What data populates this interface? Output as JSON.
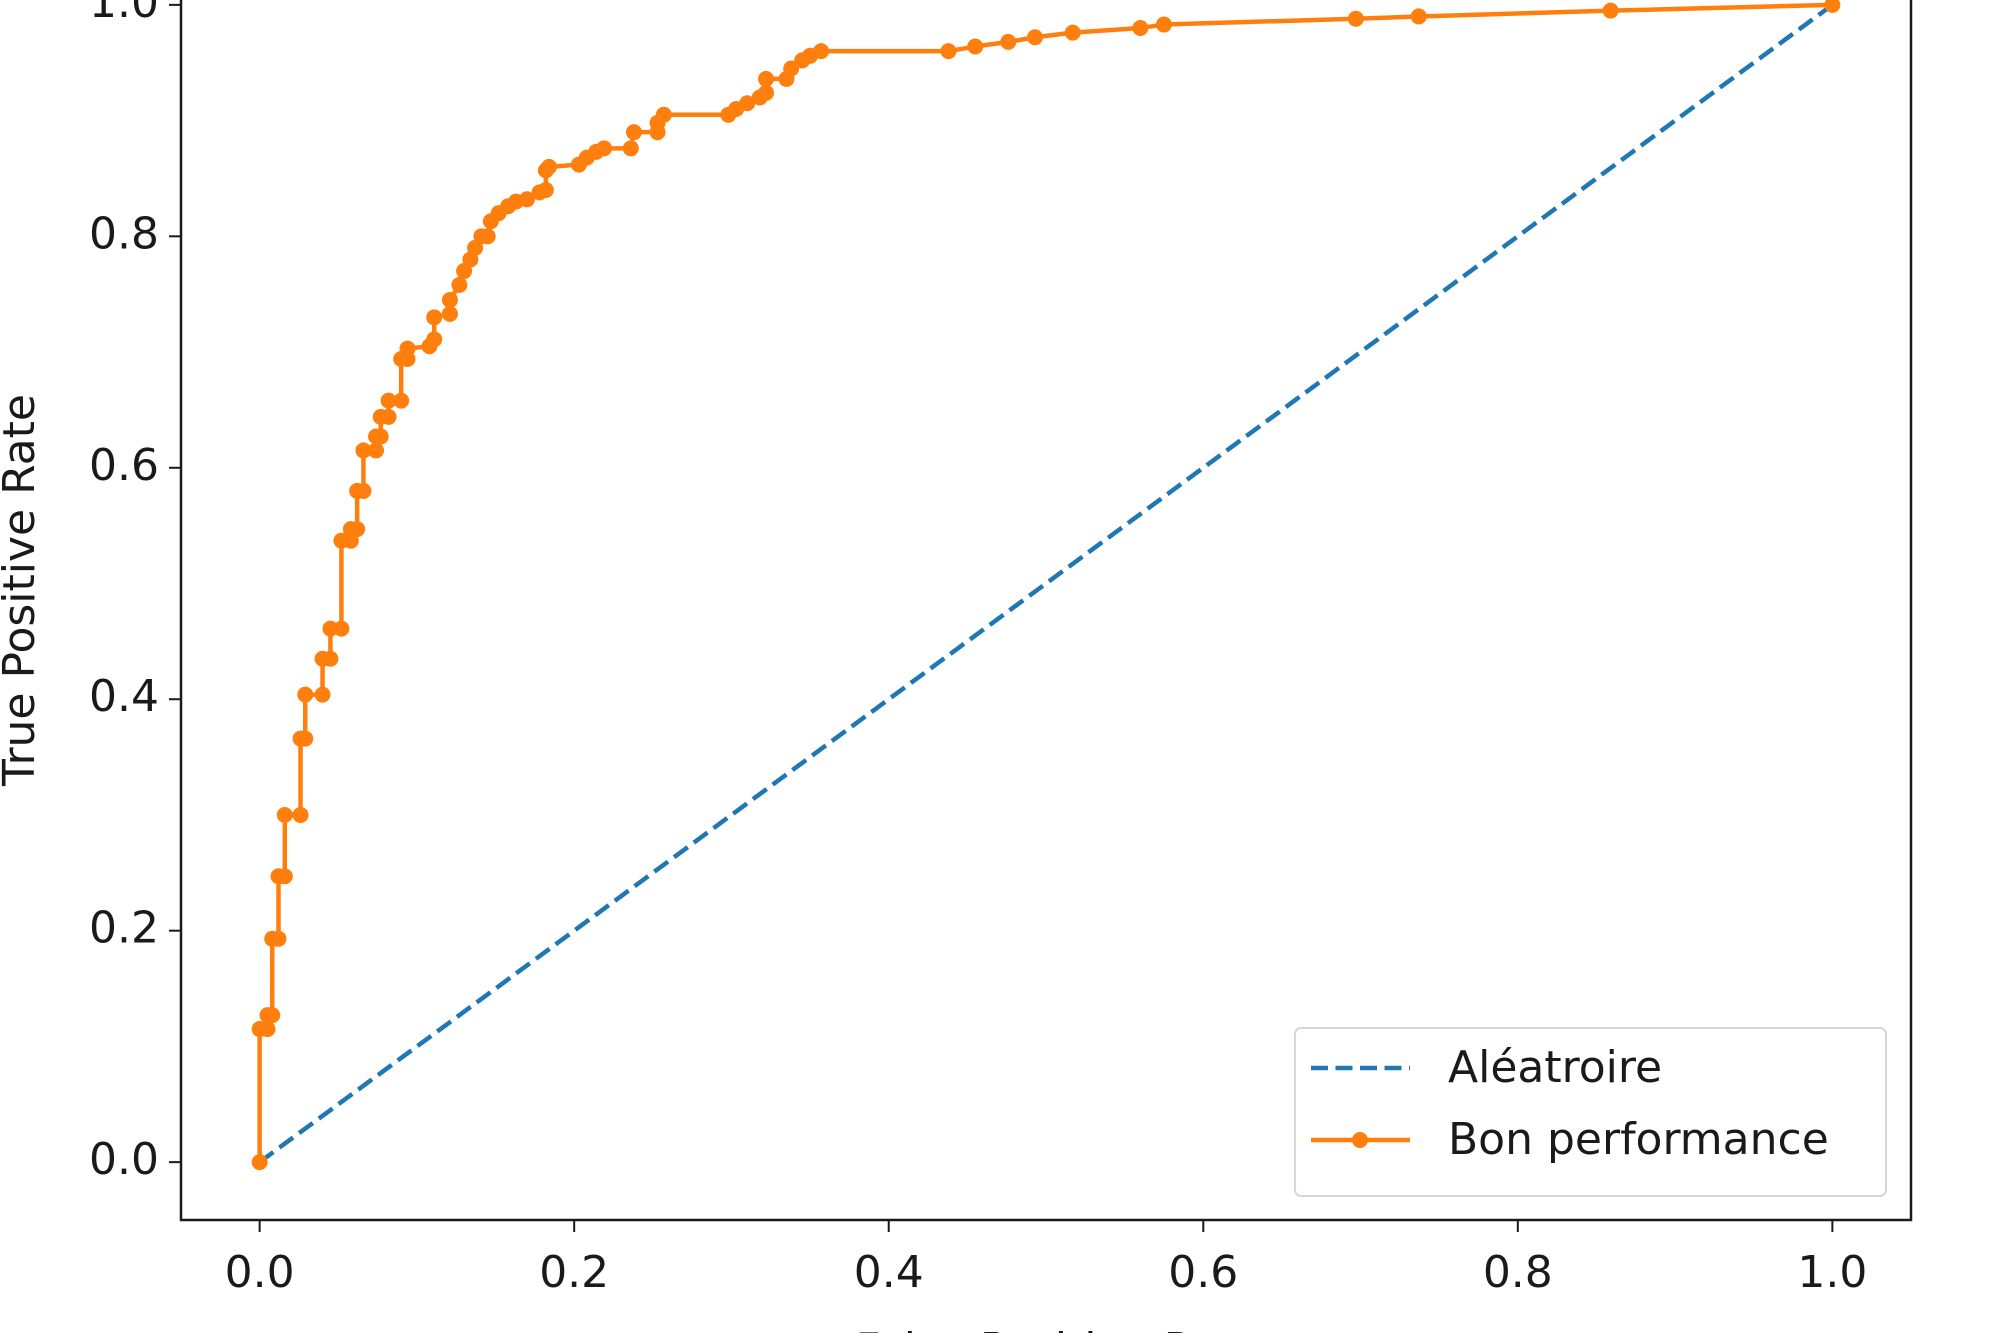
{
  "chart_data": {
    "type": "line",
    "x_label": "False Positive Rate",
    "y_label": "True Positive Rate",
    "xlim": [
      -0.05,
      1.05
    ],
    "ylim": [
      -0.05,
      1.05
    ],
    "xticks": [
      {
        "value": 0,
        "label": "0.0"
      },
      0.2,
      0.4,
      0.6,
      0.8,
      {
        "value": 1,
        "label": "1.0"
      }
    ],
    "yticks": [
      {
        "value": 0,
        "label": "0.0"
      },
      0.2,
      0.4,
      0.6,
      0.8,
      {
        "value": 1,
        "label": "1.0"
      }
    ],
    "grid": false,
    "legend": "lower right",
    "series": [
      {
        "name": "Aléatroire",
        "color": "#1f77b4",
        "dashed": true,
        "markers": false,
        "x": [
          0,
          1
        ],
        "values": [
          0,
          1
        ]
      },
      {
        "name": "Bon performance",
        "color": "#ff7f0e",
        "dashed": false,
        "markers": true,
        "x": [
          0.0,
          0.0,
          0.005,
          0.005,
          0.008,
          0.008,
          0.012,
          0.012,
          0.016,
          0.016,
          0.026,
          0.026,
          0.029,
          0.029,
          0.04,
          0.04,
          0.045,
          0.045,
          0.052,
          0.052,
          0.058,
          0.058,
          0.062,
          0.062,
          0.066,
          0.066,
          0.074,
          0.074,
          0.077,
          0.077,
          0.082,
          0.082,
          0.09,
          0.09,
          0.094,
          0.094,
          0.108,
          0.111,
          0.111,
          0.121,
          0.121,
          0.127,
          0.13,
          0.134,
          0.137,
          0.141,
          0.145,
          0.147,
          0.152,
          0.158,
          0.163,
          0.17,
          0.178,
          0.182,
          0.182,
          0.184,
          0.203,
          0.208,
          0.214,
          0.219,
          0.236,
          0.238,
          0.253,
          0.253,
          0.257,
          0.298,
          0.303,
          0.31,
          0.318,
          0.322,
          0.322,
          0.335,
          0.338,
          0.345,
          0.35,
          0.357,
          0.438,
          0.455,
          0.476,
          0.493,
          0.517,
          0.56,
          0.575,
          0.697,
          0.737,
          0.859,
          1.0
        ],
        "values": [
          0.0,
          0.115,
          0.115,
          0.127,
          0.127,
          0.193,
          0.193,
          0.247,
          0.247,
          0.3,
          0.3,
          0.366,
          0.366,
          0.404,
          0.404,
          0.435,
          0.435,
          0.461,
          0.461,
          0.537,
          0.537,
          0.547,
          0.547,
          0.58,
          0.58,
          0.615,
          0.615,
          0.627,
          0.627,
          0.644,
          0.644,
          0.658,
          0.658,
          0.694,
          0.694,
          0.703,
          0.705,
          0.711,
          0.73,
          0.733,
          0.745,
          0.758,
          0.77,
          0.78,
          0.79,
          0.8,
          0.8,
          0.813,
          0.82,
          0.826,
          0.83,
          0.832,
          0.838,
          0.84,
          0.857,
          0.86,
          0.862,
          0.868,
          0.873,
          0.876,
          0.876,
          0.89,
          0.89,
          0.898,
          0.905,
          0.905,
          0.91,
          0.915,
          0.92,
          0.924,
          0.936,
          0.936,
          0.945,
          0.952,
          0.956,
          0.96,
          0.96,
          0.964,
          0.968,
          0.972,
          0.976,
          0.98,
          0.983,
          0.988,
          0.99,
          0.995,
          1.0
        ]
      }
    ]
  }
}
